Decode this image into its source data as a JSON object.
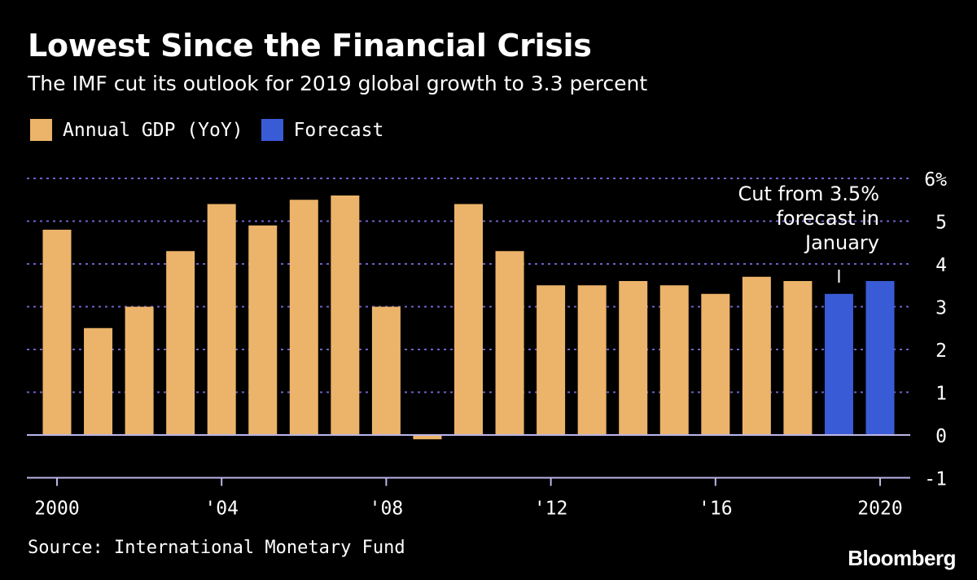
{
  "colors": {
    "background": "#000000",
    "annual": "#ECB46A",
    "forecast": "#3A5BD6",
    "grid": "#6C62C8",
    "axis": "#BBB6E6",
    "text": "#FFFFFF"
  },
  "chart_data": {
    "type": "bar",
    "title": "Lowest Since the Financial Crisis",
    "subtitle": "The IMF cut its outlook for 2019 global growth to 3.3 percent",
    "legend": [
      {
        "label": "Annual GDP (YoY)",
        "color": "#ECB46A"
      },
      {
        "label": "Forecast",
        "color": "#3A5BD6"
      }
    ],
    "xlabel": "",
    "ylabel": "",
    "ylim": [
      -1,
      6
    ],
    "y_ticks": [
      {
        "value": 6,
        "label": "6%"
      },
      {
        "value": 5,
        "label": "5"
      },
      {
        "value": 4,
        "label": "4"
      },
      {
        "value": 3,
        "label": "3"
      },
      {
        "value": 2,
        "label": "2"
      },
      {
        "value": 1,
        "label": "1"
      },
      {
        "value": 0,
        "label": "0"
      },
      {
        "value": -1,
        "label": "-1"
      }
    ],
    "x_ticks": [
      {
        "year": 2000,
        "label": "2000"
      },
      {
        "year": 2004,
        "label": "'04"
      },
      {
        "year": 2008,
        "label": "'08"
      },
      {
        "year": 2012,
        "label": "'12"
      },
      {
        "year": 2016,
        "label": "'16"
      },
      {
        "year": 2020,
        "label": "2020"
      }
    ],
    "series": [
      {
        "name": "Annual GDP (YoY)",
        "years": [
          2000,
          2001,
          2002,
          2003,
          2004,
          2005,
          2006,
          2007,
          2008,
          2009,
          2010,
          2011,
          2012,
          2013,
          2014,
          2015,
          2016,
          2017,
          2018
        ],
        "values": [
          4.8,
          2.5,
          3.0,
          4.3,
          5.4,
          4.9,
          5.5,
          5.6,
          3.0,
          -0.1,
          5.4,
          4.3,
          3.5,
          3.5,
          3.6,
          3.5,
          3.3,
          3.7,
          3.6
        ]
      },
      {
        "name": "Forecast",
        "years": [
          2019,
          2020
        ],
        "values": [
          3.3,
          3.6
        ]
      }
    ],
    "annotation": {
      "year": 2019,
      "lines": [
        "Cut from 3.5%",
        "forecast in",
        "January"
      ]
    }
  },
  "source": "Source: International Monetary Fund",
  "brand": "Bloomberg"
}
